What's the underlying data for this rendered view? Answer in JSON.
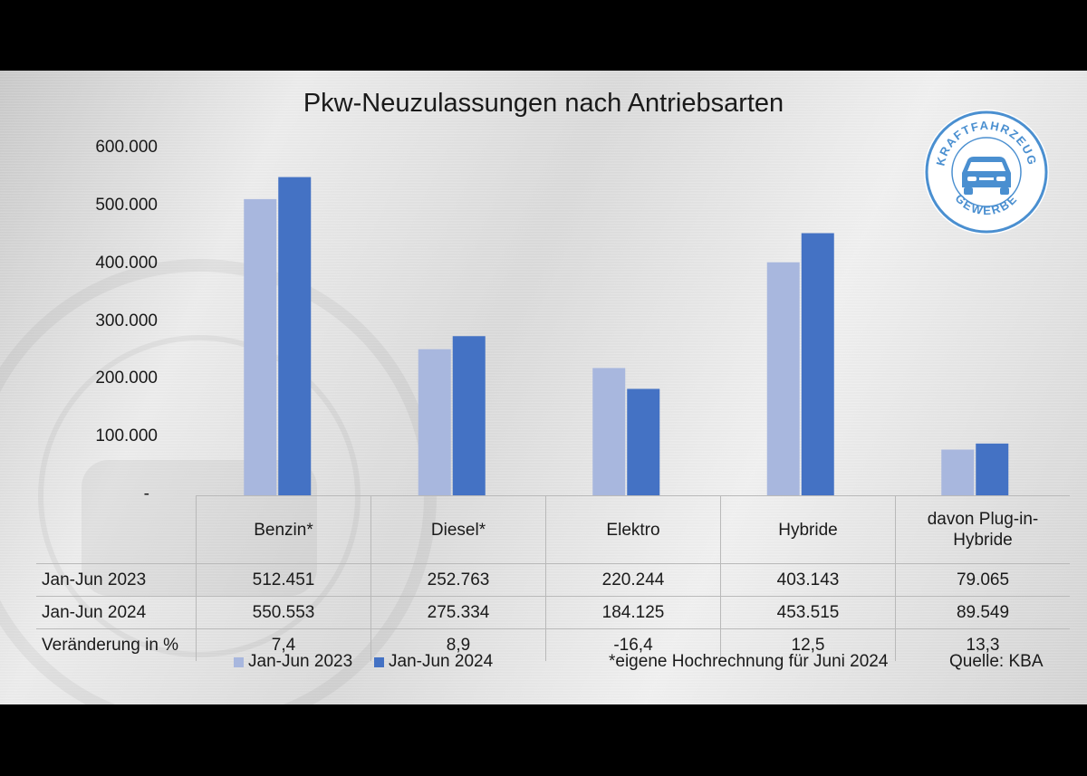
{
  "chart_data": {
    "type": "bar",
    "title": "Pkw-Neuzulassungen nach Antriebsarten",
    "categories": [
      "Benzin*",
      "Diesel*",
      "Elektro",
      "Hybride",
      "davon Plug-in-Hybride"
    ],
    "series": [
      {
        "name": "Jan-Jun 2023",
        "values": [
          512451,
          252763,
          220244,
          403143,
          79065
        ],
        "color": "#a8b7de"
      },
      {
        "name": "Jan-Jun 2024",
        "values": [
          550553,
          275334,
          184125,
          453515,
          89549
        ],
        "color": "#4472c4"
      }
    ],
    "ylim": [
      0,
      600000
    ],
    "yticks": [
      "-",
      "100.000",
      "200.000",
      "300.000",
      "400.000",
      "500.000",
      "600.000"
    ],
    "legend": "bottom-left",
    "grid": false
  },
  "table": {
    "header": [
      "Benzin*",
      "Diesel*",
      "Elektro",
      "Hybride",
      "davon Plug-in-Hybride"
    ],
    "rows": [
      {
        "label": "Jan-Jun 2023",
        "cells": [
          "512.451",
          "252.763",
          "220.244",
          "403.143",
          "79.065"
        ]
      },
      {
        "label": "Jan-Jun 2024",
        "cells": [
          "550.553",
          "275.334",
          "184.125",
          "453.515",
          "89.549"
        ]
      },
      {
        "label": "Veränderung in %",
        "cells": [
          "7,4",
          "8,9",
          "-16,4",
          "12,5",
          "13,3"
        ]
      }
    ]
  },
  "legend": {
    "item1": "Jan-Jun 2023",
    "item2": "Jan-Jun 2024"
  },
  "footnote": "*eigene Hochrechnung für Juni 2024",
  "source": "Quelle: KBA",
  "logo": {
    "top_text": "KRAFTFAHRZEUG",
    "bottom_text": "GEWERBE",
    "color": "#4a8fd0"
  }
}
